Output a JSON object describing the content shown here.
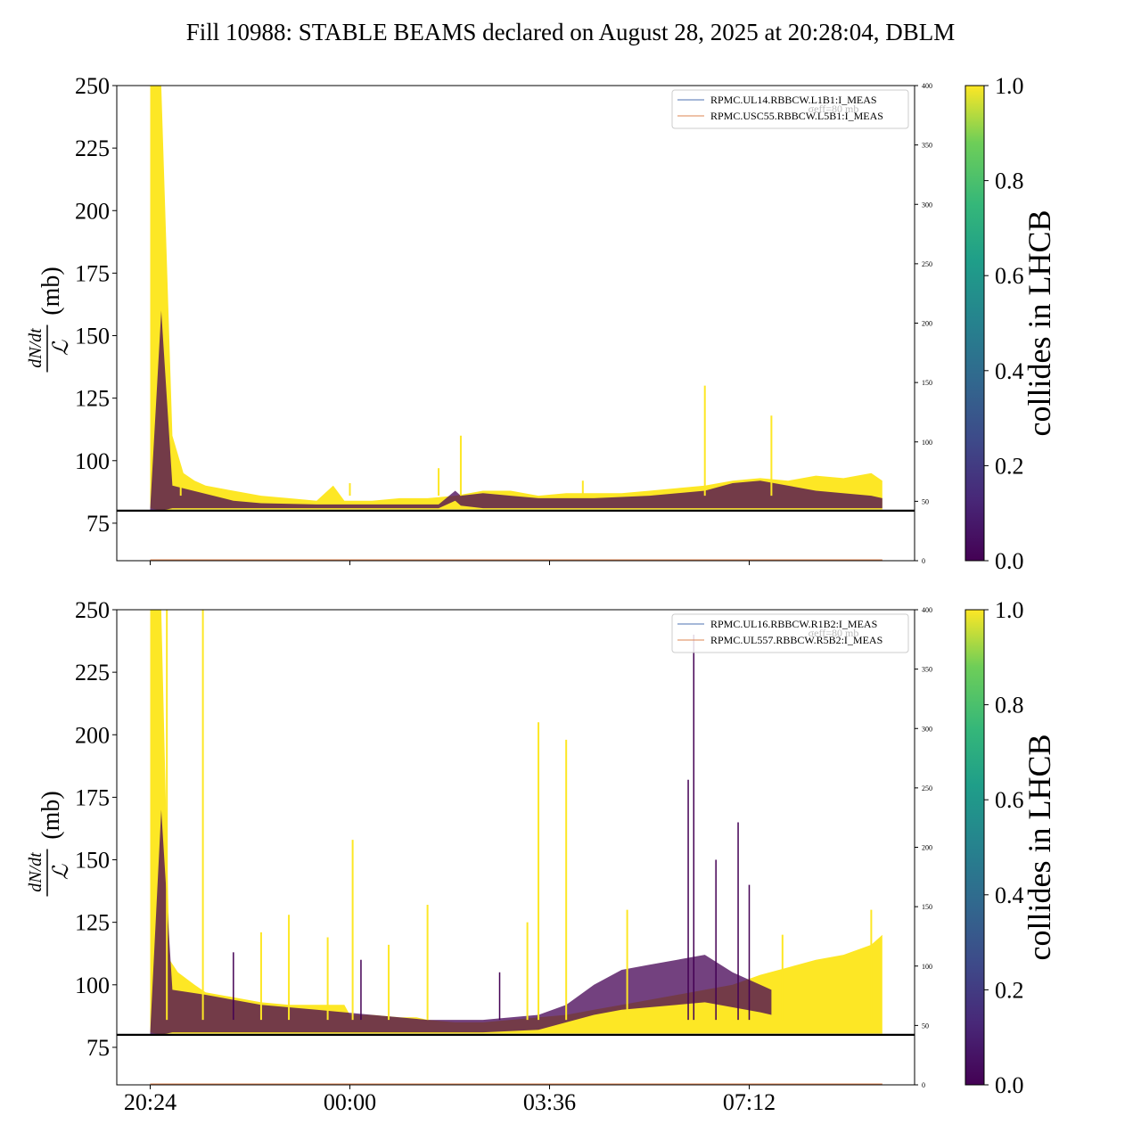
{
  "title": "Fill 10988: STABLE BEAMS declared on August 28, 2025 at 20:28:04, DBLM",
  "colors": {
    "collide_yes": "#fde725",
    "collide_no": "#440154",
    "legend_line1": "#4c72b0",
    "legend_line2": "#dd8452",
    "threshold_line": "#000000"
  },
  "colorbar": {
    "label": "collides in LHCB",
    "ticks": [
      "0.0",
      "0.2",
      "0.4",
      "0.6",
      "0.8",
      "1.0"
    ],
    "colormap": "viridis"
  },
  "chart_data": [
    {
      "type": "line",
      "panel": "top",
      "ylabel_math": "dN/dt / L",
      "ylabel_unit": "(mb)",
      "ylim": [
        60,
        250
      ],
      "yticks": [
        "75",
        "100",
        "125",
        "150",
        "175",
        "200",
        "225",
        "250"
      ],
      "ylim_right": [
        0,
        400
      ],
      "yticks_right": [
        "0",
        "50",
        "100",
        "150",
        "200",
        "250",
        "300",
        "350",
        "400"
      ],
      "xticks": [
        "20:24",
        "00:00",
        "03:36",
        "07:12"
      ],
      "threshold": 80,
      "legend": {
        "position": "top-right",
        "entries": [
          "RPMC.UL14.RBBCW.L1B1:I_MEAS",
          "RPMC.USC55.RBBCW.L5B1:I_MEAS"
        ],
        "background_text": "σeff=80 mb"
      },
      "series": [
        {
          "collides": 1,
          "x": [
            0,
            0.2,
            0.4,
            0.6,
            0.8,
            1.0,
            1.5,
            2.0,
            2.5,
            3.0,
            3.3,
            3.5,
            3.6,
            3.8,
            4.0,
            4.5,
            5.0,
            5.5,
            6.0,
            6.5,
            7.0,
            7.5,
            8.0,
            8.5,
            9.0,
            9.5,
            10.0,
            10.5,
            11.0,
            11.5,
            12.0,
            12.5,
            13.0,
            13.2
          ],
          "upper": [
            250,
            250,
            110,
            95,
            92,
            90,
            88,
            86,
            85,
            84,
            90,
            84,
            84,
            84,
            84,
            85,
            85,
            86,
            88,
            88,
            86,
            87,
            87,
            87,
            88,
            89,
            90,
            92,
            93,
            92,
            94,
            93,
            95,
            92
          ],
          "lower": [
            81,
            80,
            80.5,
            80.5,
            80.5,
            80.5,
            80.5,
            80.5,
            80.5,
            80.5,
            80.5,
            80.5,
            80.5,
            80.5,
            80.5,
            80.5,
            80.5,
            80.5,
            80.5,
            80.5,
            80.5,
            80.5,
            80.5,
            80.5,
            80.5,
            80.5,
            80.5,
            80.5,
            80.5,
            80.5,
            80.5,
            80.5,
            80.5,
            80.5
          ]
        },
        {
          "collides": 0,
          "x": [
            0,
            0.2,
            0.4,
            1.5,
            2.0,
            3.0,
            5.2,
            5.5,
            5.6,
            6.0,
            6.5,
            7.0,
            7.5,
            8.0,
            9.0,
            10.0,
            10.5,
            11.0,
            12.0,
            13.0,
            13.2
          ],
          "upper": [
            81,
            160,
            90,
            84,
            83,
            82.5,
            82.5,
            88,
            86,
            87,
            86,
            85,
            85,
            85,
            86,
            88,
            91,
            92,
            88,
            86,
            85
          ],
          "lower": [
            80,
            80,
            81,
            81,
            81,
            81,
            81,
            84,
            82,
            81,
            81,
            81,
            81,
            81,
            81,
            81,
            81,
            81,
            81,
            81,
            81
          ]
        }
      ],
      "spikes": [
        {
          "x": 0.55,
          "y": 90,
          "collides": 1
        },
        {
          "x": 3.6,
          "y": 91,
          "collides": 1
        },
        {
          "x": 5.2,
          "y": 97,
          "collides": 1
        },
        {
          "x": 5.6,
          "y": 110,
          "collides": 1
        },
        {
          "x": 7.8,
          "y": 92,
          "collides": 1
        },
        {
          "x": 10.0,
          "y": 130,
          "collides": 1
        },
        {
          "x": 11.2,
          "y": 118,
          "collides": 1
        }
      ]
    },
    {
      "type": "line",
      "panel": "bottom",
      "ylabel_math": "dN/dt / L",
      "ylabel_unit": "(mb)",
      "ylim": [
        60,
        250
      ],
      "yticks": [
        "75",
        "100",
        "125",
        "150",
        "175",
        "200",
        "225",
        "250"
      ],
      "ylim_right": [
        0,
        400
      ],
      "yticks_right": [
        "0",
        "50",
        "100",
        "150",
        "200",
        "250",
        "300",
        "350",
        "400"
      ],
      "xticks": [
        "20:24",
        "00:00",
        "03:36",
        "07:12"
      ],
      "threshold": 80,
      "legend": {
        "position": "top-right",
        "entries": [
          "RPMC.UL16.RBBCW.R1B2:I_MEAS",
          "RPMC.UL557.RBBCW.R5B2:I_MEAS"
        ],
        "background_text": "σeff=80 mb"
      },
      "series": [
        {
          "collides": 1,
          "x": [
            0,
            0.2,
            0.35,
            0.5,
            0.8,
            1.0,
            1.5,
            2.0,
            2.5,
            3.0,
            3.5,
            3.6,
            4.0,
            4.5,
            4.8,
            5.0,
            5.5,
            6.0,
            6.5,
            7.0,
            7.5,
            8.0,
            8.5,
            9.0,
            9.5,
            10.0,
            10.5,
            11.0,
            11.5,
            12.0,
            12.5,
            13.0,
            13.2
          ],
          "upper": [
            250,
            250,
            110,
            105,
            100,
            97,
            95,
            93,
            92,
            92,
            92,
            88,
            88,
            87,
            87,
            86,
            85,
            85,
            86,
            87,
            88,
            90,
            92,
            94,
            96,
            98,
            100,
            104,
            107,
            110,
            112,
            116,
            120
          ],
          "lower": [
            81,
            80,
            80.5,
            80.5,
            80.5,
            80.5,
            80.5,
            80.5,
            80.5,
            80.5,
            80.5,
            80.5,
            80.5,
            80.5,
            80.5,
            80.5,
            80.5,
            80.5,
            80.5,
            80.5,
            80.5,
            80.5,
            80.5,
            80.5,
            80.5,
            80.5,
            80.5,
            80.5,
            80.5,
            80.5,
            80.5,
            80.5,
            80.5
          ]
        },
        {
          "collides": 0,
          "x": [
            0,
            0.2,
            0.4,
            1.0,
            2.0,
            3.0,
            3.5,
            4.0,
            5.0,
            6.0,
            7.0,
            7.5,
            8.0,
            8.5,
            9.0,
            9.5,
            10.0,
            10.5,
            11.0,
            11.2
          ],
          "upper": [
            81,
            170,
            98,
            96,
            92,
            90,
            89,
            88,
            86,
            86,
            88,
            92,
            100,
            106,
            108,
            110,
            112,
            105,
            100,
            98
          ],
          "lower": [
            80,
            80,
            81,
            81,
            81,
            81,
            81,
            81,
            81,
            81,
            82,
            85,
            88,
            90,
            91,
            92,
            93,
            91,
            89,
            88
          ]
        }
      ],
      "spikes": [
        {
          "x": 0.3,
          "y": 250,
          "collides": 1
        },
        {
          "x": 0.95,
          "y": 250,
          "collides": 1
        },
        {
          "x": 1.5,
          "y": 113,
          "collides": 0
        },
        {
          "x": 2.0,
          "y": 121,
          "collides": 1
        },
        {
          "x": 2.5,
          "y": 128,
          "collides": 1
        },
        {
          "x": 3.2,
          "y": 119,
          "collides": 1
        },
        {
          "x": 3.65,
          "y": 158,
          "collides": 1
        },
        {
          "x": 3.8,
          "y": 110,
          "collides": 0
        },
        {
          "x": 4.3,
          "y": 116,
          "collides": 1
        },
        {
          "x": 5.0,
          "y": 132,
          "collides": 1
        },
        {
          "x": 6.3,
          "y": 105,
          "collides": 0
        },
        {
          "x": 6.8,
          "y": 125,
          "collides": 1
        },
        {
          "x": 7.0,
          "y": 205,
          "collides": 1
        },
        {
          "x": 7.5,
          "y": 198,
          "collides": 1
        },
        {
          "x": 8.6,
          "y": 130,
          "collides": 1
        },
        {
          "x": 9.7,
          "y": 182,
          "collides": 0
        },
        {
          "x": 9.8,
          "y": 240,
          "collides": 0
        },
        {
          "x": 10.2,
          "y": 150,
          "collides": 0
        },
        {
          "x": 10.6,
          "y": 165,
          "collides": 0
        },
        {
          "x": 10.8,
          "y": 140,
          "collides": 0
        },
        {
          "x": 11.4,
          "y": 120,
          "collides": 1
        },
        {
          "x": 13.0,
          "y": 130,
          "collides": 1
        }
      ]
    }
  ]
}
